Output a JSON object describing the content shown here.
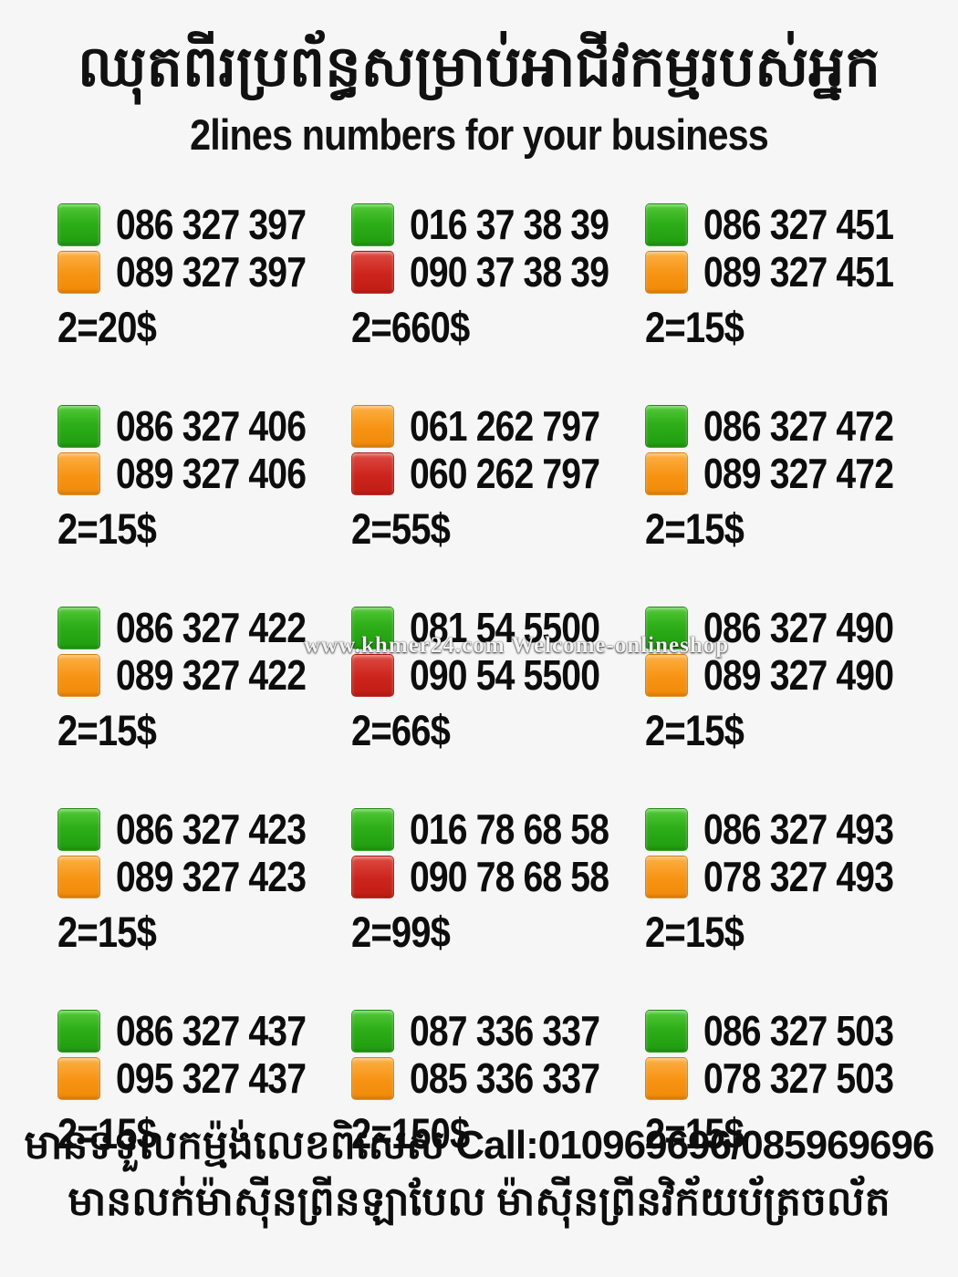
{
  "header": {
    "title_khmer": "ឈុតពីរប្រព័ន្ធសម្រាប់អាជីវកម្មរបស់អ្នក",
    "subtitle": "2lines numbers for your business"
  },
  "watermark": "www.khmer24.com Welcome-onlineshop",
  "listings": [
    {
      "pairs": [
        {
          "color": "green",
          "number": "086 327 397"
        },
        {
          "color": "orange",
          "number": "089 327 397"
        }
      ],
      "price": "2=20$"
    },
    {
      "pairs": [
        {
          "color": "green",
          "number": "016 37 38 39"
        },
        {
          "color": "red",
          "number": "090 37 38 39"
        }
      ],
      "price": "2=660$"
    },
    {
      "pairs": [
        {
          "color": "green",
          "number": "086 327 451"
        },
        {
          "color": "orange",
          "number": "089 327 451"
        }
      ],
      "price": "2=15$"
    },
    {
      "pairs": [
        {
          "color": "green",
          "number": "086 327 406"
        },
        {
          "color": "orange",
          "number": "089 327 406"
        }
      ],
      "price": "2=15$"
    },
    {
      "pairs": [
        {
          "color": "orange",
          "number": "061 262 797"
        },
        {
          "color": "red",
          "number": "060 262 797"
        }
      ],
      "price": "2=55$"
    },
    {
      "pairs": [
        {
          "color": "green",
          "number": "086 327 472"
        },
        {
          "color": "orange",
          "number": "089 327 472"
        }
      ],
      "price": "2=15$"
    },
    {
      "pairs": [
        {
          "color": "green",
          "number": "086 327 422"
        },
        {
          "color": "orange",
          "number": "089 327 422"
        }
      ],
      "price": "2=15$"
    },
    {
      "pairs": [
        {
          "color": "green",
          "number": "081 54 5500"
        },
        {
          "color": "red",
          "number": "090 54 5500"
        }
      ],
      "price": "2=66$"
    },
    {
      "pairs": [
        {
          "color": "green",
          "number": "086 327 490"
        },
        {
          "color": "orange",
          "number": "089 327 490"
        }
      ],
      "price": "2=15$"
    },
    {
      "pairs": [
        {
          "color": "green",
          "number": "086 327 423"
        },
        {
          "color": "orange",
          "number": "089 327 423"
        }
      ],
      "price": "2=15$"
    },
    {
      "pairs": [
        {
          "color": "green",
          "number": "016 78 68 58"
        },
        {
          "color": "red",
          "number": "090 78 68 58"
        }
      ],
      "price": "2=99$"
    },
    {
      "pairs": [
        {
          "color": "green",
          "number": "086 327 493"
        },
        {
          "color": "orange",
          "number": "078 327 493"
        }
      ],
      "price": "2=15$"
    },
    {
      "pairs": [
        {
          "color": "green",
          "number": "086 327 437"
        },
        {
          "color": "orange",
          "number": "095 327 437"
        }
      ],
      "price": "2=15$"
    },
    {
      "pairs": [
        {
          "color": "green",
          "number": "087 336 337"
        },
        {
          "color": "orange",
          "number": "085 336 337"
        }
      ],
      "price": "2=150$"
    },
    {
      "pairs": [
        {
          "color": "green",
          "number": "086 327 503"
        },
        {
          "color": "orange",
          "number": "078 327 503"
        }
      ],
      "price": "2=15$"
    }
  ],
  "footer": {
    "line1_khmer": "មានទទួលកម្ម៉ង់លេខពិសេស",
    "line1_call": "Call:010969696/085969696",
    "line2_khmer": "មានលក់ម៉ាស៊ីនព្រីនឡាបែល ម៉ាស៊ីនព្រីនវិក័យប័ត្រចល័ត"
  },
  "colors": {
    "green": "#2eae18",
    "orange": "#f79312",
    "red": "#cc241c",
    "background": "#f6f6f6",
    "text": "#0d0d0d"
  }
}
